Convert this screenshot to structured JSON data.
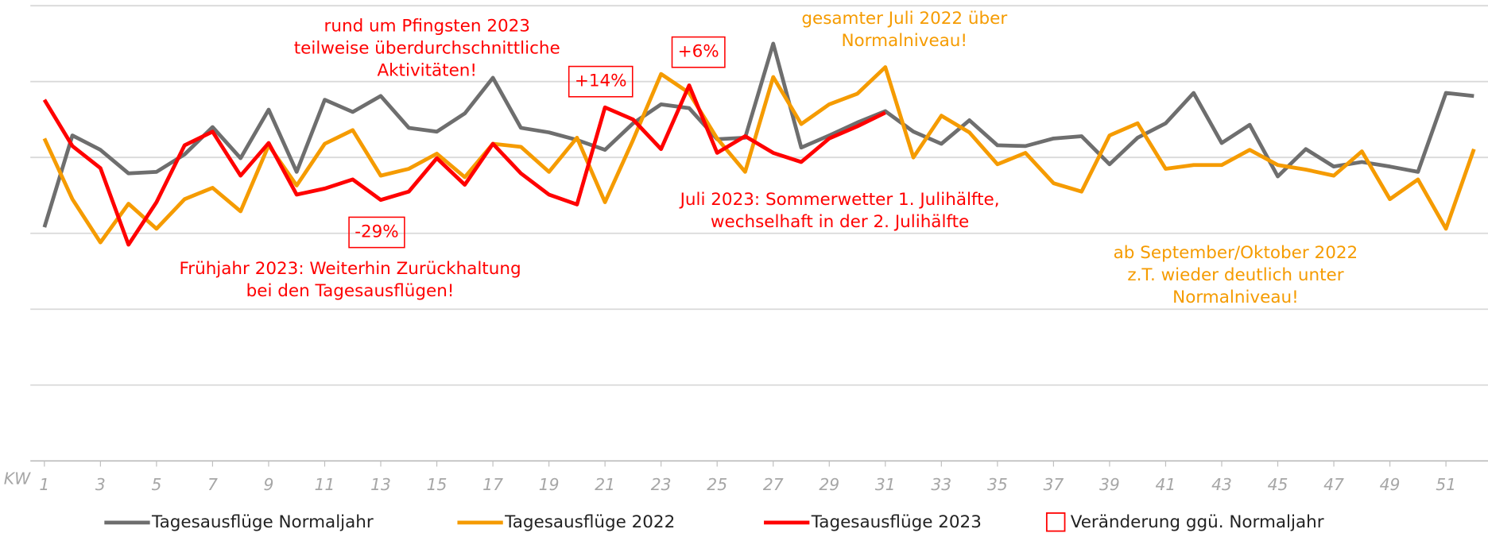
{
  "chart_data": {
    "type": "line",
    "x": [
      1,
      2,
      3,
      4,
      5,
      6,
      7,
      8,
      9,
      10,
      11,
      12,
      13,
      14,
      15,
      16,
      17,
      18,
      19,
      20,
      21,
      22,
      23,
      24,
      25,
      26,
      27,
      28,
      29,
      30,
      31,
      32,
      33,
      34,
      35,
      36,
      37,
      38,
      39,
      40,
      41,
      42,
      43,
      44,
      45,
      46,
      47,
      48,
      49,
      50,
      51,
      52
    ],
    "xlim": [
      0.5,
      52.5
    ],
    "xticks": [
      1,
      3,
      5,
      7,
      9,
      11,
      13,
      15,
      17,
      19,
      21,
      23,
      25,
      27,
      29,
      31,
      33,
      35,
      37,
      39,
      41,
      43,
      45,
      47,
      49,
      51
    ],
    "x_label": "KW",
    "ylim": [
      0,
      6
    ],
    "yticks": [
      0,
      1,
      2,
      3,
      4,
      5,
      6
    ],
    "grid": true,
    "series": [
      {
        "name": "Tagesausflüge Normaljahr",
        "color": "#6e6e6e",
        "values": [
          3.08,
          4.29,
          4.1,
          3.79,
          3.81,
          4.04,
          4.4,
          3.99,
          4.63,
          3.81,
          4.76,
          4.6,
          4.81,
          4.39,
          4.34,
          4.58,
          5.05,
          4.39,
          4.33,
          4.23,
          4.1,
          4.45,
          4.7,
          4.65,
          4.24,
          4.26,
          5.5,
          4.13,
          4.29,
          4.46,
          4.61,
          4.34,
          4.18,
          4.49,
          4.16,
          4.15,
          4.25,
          4.28,
          3.91,
          4.26,
          4.45,
          4.85,
          4.19,
          4.43,
          3.75,
          4.11,
          3.88,
          3.94,
          3.88,
          3.81,
          4.85,
          4.81
        ]
      },
      {
        "name": "Tagesausflüge  2022",
        "color": "#f59b00",
        "values": [
          4.25,
          3.45,
          2.88,
          3.39,
          3.06,
          3.45,
          3.6,
          3.29,
          4.16,
          3.63,
          4.18,
          4.36,
          3.76,
          3.85,
          4.05,
          3.74,
          4.18,
          4.14,
          3.81,
          4.26,
          3.41,
          4.23,
          5.1,
          4.85,
          4.25,
          3.81,
          5.06,
          4.44,
          4.7,
          4.84,
          5.19,
          4.0,
          4.55,
          4.33,
          3.91,
          4.06,
          3.66,
          3.55,
          4.29,
          4.45,
          3.85,
          3.9,
          3.9,
          4.1,
          3.9,
          3.84,
          3.76,
          4.08,
          3.45,
          3.71,
          3.06,
          4.11
        ]
      },
      {
        "name": "Tagesausflüge  2023",
        "color": "#ff0000",
        "values": [
          4.76,
          4.15,
          3.86,
          2.85,
          3.41,
          4.16,
          4.34,
          3.76,
          4.19,
          3.51,
          3.59,
          3.71,
          3.44,
          3.55,
          3.99,
          3.64,
          4.18,
          3.79,
          3.51,
          3.38,
          4.66,
          4.5,
          4.11,
          4.95,
          4.06,
          4.28,
          4.06,
          3.94,
          4.25,
          4.41,
          4.59,
          null,
          null,
          null,
          null,
          null,
          null,
          null,
          null,
          null,
          null,
          null,
          null,
          null,
          null,
          null,
          null,
          null,
          null,
          null,
          null,
          null
        ]
      }
    ],
    "legend_box": {
      "name": "Veränderung ggü. Normaljahr",
      "color": "#ff0000"
    },
    "annotations": [
      {
        "lines": [
          "rund um Pfingsten 2023",
          "teilweise überdurchschnittliche",
          "Aktivitäten!"
        ],
        "color": "#ff0000"
      },
      {
        "lines": [
          "gesamter Juli 2022 über",
          "Normalniveau!"
        ],
        "color": "#f59b00"
      },
      {
        "lines": [
          "Juli 2023: Sommerwetter 1. Julihälfte,",
          "wechselhaft in der 2. Julihälfte"
        ],
        "color": "#ff0000"
      },
      {
        "lines": [
          "Frühjahr 2023: Weiterhin Zurückhaltung",
          "bei den Tagesausflügen!"
        ],
        "color": "#ff0000"
      },
      {
        "lines": [
          "ab September/Oktober 2022",
          "z.T. wieder deutlich unter",
          "Normalniveau!"
        ],
        "color": "#f59b00"
      }
    ],
    "boxes": [
      {
        "text": "+14%",
        "color": "#ff0000"
      },
      {
        "text": "+6%",
        "color": "#ff0000"
      },
      {
        "text": "-29%",
        "color": "#ff0000"
      }
    ]
  }
}
